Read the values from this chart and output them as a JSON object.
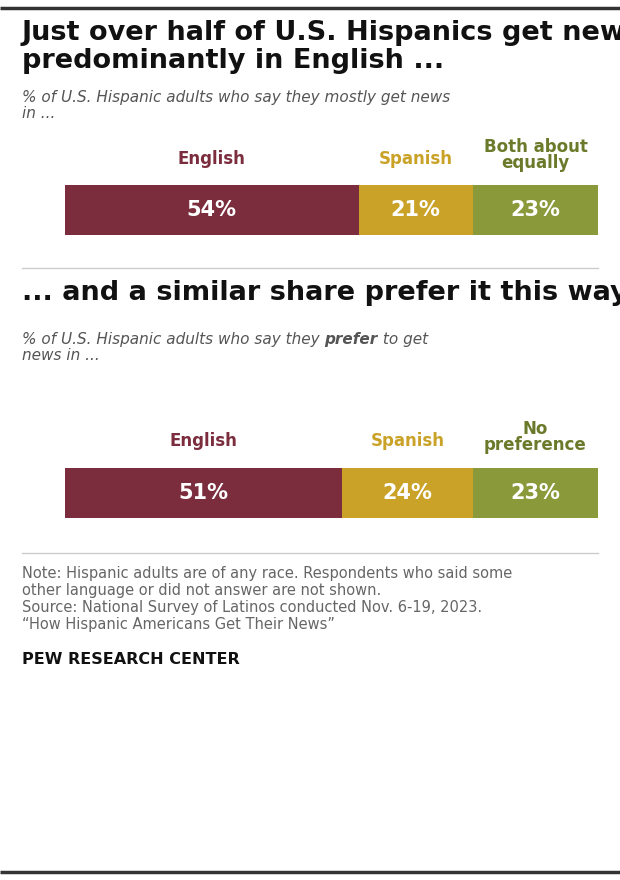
{
  "title1_line1": "Just over half of U.S. Hispanics get news",
  "title1_line2": "predominantly in English ...",
  "subtitle1_line1": "% of U.S. Hispanic adults who say they mostly get news",
  "subtitle1_line2": "in ...",
  "title2": "... and a similar share prefer it this way",
  "subtitle2_part1": "% of U.S. Hispanic adults who say they ",
  "subtitle2_part2": "prefer",
  "subtitle2_part3": " to get",
  "subtitle2_line2": "news in ...",
  "chart1": {
    "labels": [
      "English",
      "Spanish",
      "Both about\nequally"
    ],
    "values": [
      54,
      21,
      23
    ],
    "colors": [
      "#7B2D3E",
      "#C9A227",
      "#8A9A3B"
    ],
    "label_colors": [
      "#7B2D3E",
      "#C9A227",
      "#6B7A2A"
    ]
  },
  "chart2": {
    "labels": [
      "English",
      "Spanish",
      "No\npreference"
    ],
    "values": [
      51,
      24,
      23
    ],
    "colors": [
      "#7B2D3E",
      "#C9A227",
      "#8A9A3B"
    ],
    "label_colors": [
      "#7B2D3E",
      "#C9A227",
      "#6B7A2A"
    ]
  },
  "note_lines": [
    "Note: Hispanic adults are of any race. Respondents who said some",
    "other language or did not answer are not shown.",
    "Source: National Survey of Latinos conducted Nov. 6-19, 2023.",
    "“How Hispanic Americans Get Their News”"
  ],
  "source_label": "PEW RESEARCH CENTER",
  "bar_text_color": "#FFFFFF",
  "background_color": "#FFFFFF",
  "title_color": "#111111",
  "subtitle_color": "#555555",
  "note_color": "#666666"
}
